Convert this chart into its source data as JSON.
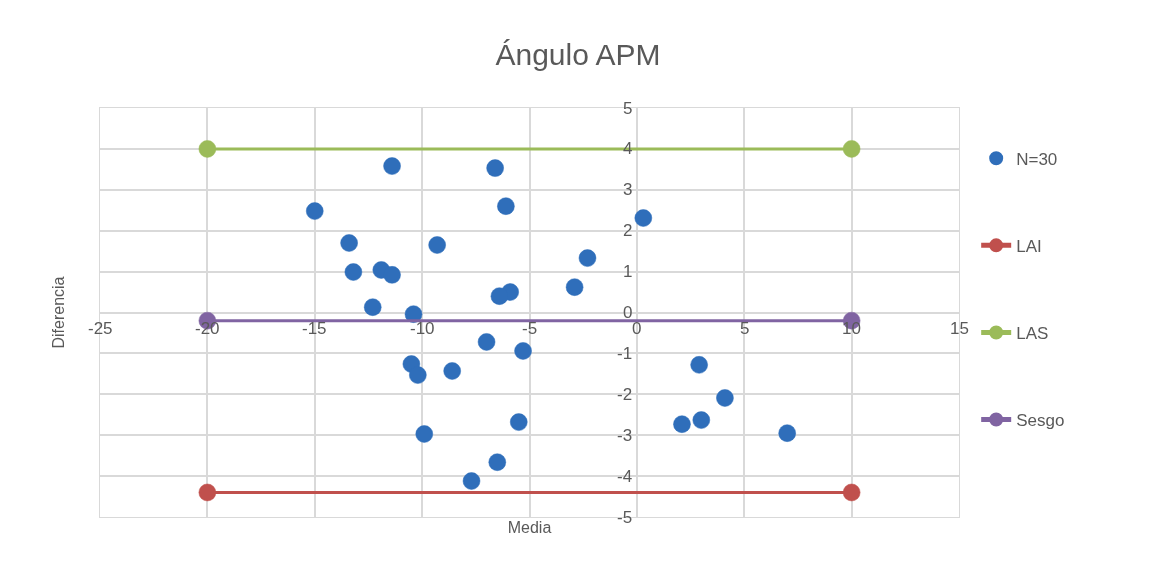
{
  "chart_data": {
    "type": "scatter",
    "title": "Ángulo APM",
    "xlabel": "Media",
    "ylabel": "Diferencia",
    "xlim": [
      -25,
      15
    ],
    "xticks": [
      -25,
      -20,
      -15,
      -10,
      -5,
      0,
      5,
      10,
      15
    ],
    "ylim": [
      -5,
      5
    ],
    "yticks": [
      -5,
      -4,
      -3,
      -2,
      -1,
      0,
      1,
      2,
      3,
      4,
      5
    ],
    "grid": true,
    "legend": "right",
    "marker": "circle",
    "series": [
      {
        "name": "N=30",
        "color": "#2f6eba",
        "x": [
          -11.4,
          -6.6,
          -15.0,
          -6.1,
          0.3,
          -13.4,
          -9.3,
          -2.3,
          -13.2,
          -11.9,
          -11.4,
          -2.9,
          -5.9,
          -6.4,
          -12.3,
          -10.4,
          -7.0,
          -5.3,
          -10.5,
          -10.2,
          -8.6,
          2.9,
          4.1,
          2.1,
          3.0,
          -5.5,
          -9.9,
          7.0,
          -6.5,
          -7.7
        ],
        "values": [
          3.58,
          3.53,
          2.48,
          2.6,
          2.31,
          1.7,
          1.65,
          1.33,
          0.99,
          1.04,
          0.92,
          0.62,
          0.5,
          0.4,
          0.13,
          -0.04,
          -0.72,
          -0.94,
          -1.26,
          -1.53,
          -1.43,
          -1.28,
          -2.09,
          -2.73,
          -2.63,
          -2.68,
          -2.97,
          -2.95,
          -3.66,
          -4.12
        ]
      },
      {
        "name": "LAI",
        "type": "line",
        "color": "#c0504d",
        "x": [
          -20,
          10
        ],
        "values": [
          -4.4,
          -4.4
        ]
      },
      {
        "name": "LAS",
        "type": "line",
        "color": "#9bbb59",
        "x": [
          -20,
          10
        ],
        "values": [
          4.0,
          4.0
        ]
      },
      {
        "name": "Sesgo",
        "type": "line",
        "color": "#8064a2",
        "x": [
          -20,
          10
        ],
        "values": [
          -0.2,
          -0.2
        ]
      }
    ]
  }
}
